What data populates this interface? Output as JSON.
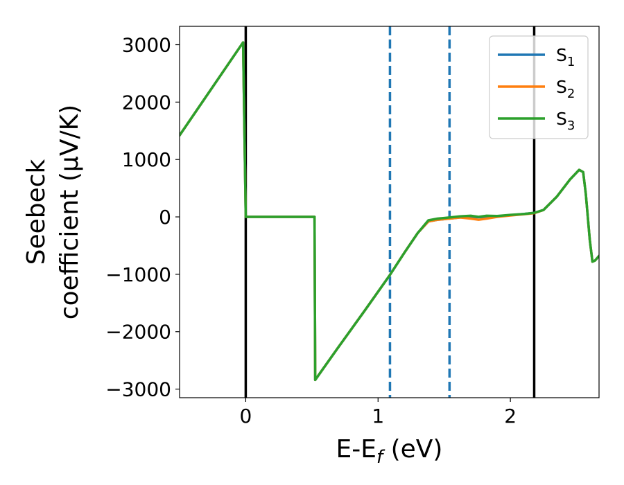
{
  "chart_data": {
    "type": "line",
    "title": "",
    "xlabel": "E-E",
    "xlabel_sub": "f",
    "xlabel_unit": " (eV)",
    "ylabel_line1": "Seebeck",
    "ylabel_line2": "coefficient  (μV/K)",
    "xlim": [
      -0.5,
      2.67
    ],
    "ylim": [
      -3150,
      3320
    ],
    "xticks": [
      0,
      1,
      2
    ],
    "xtick_labels": [
      "0",
      "1",
      "2"
    ],
    "yticks": [
      -3000,
      -2000,
      -1000,
      0,
      1000,
      2000,
      3000
    ],
    "ytick_labels": [
      "−3000",
      "−2000",
      "−1000",
      "0",
      "1000",
      "2000",
      "3000"
    ],
    "grid": false,
    "legend_position": "upper right",
    "vlines": [
      {
        "x": 0.0,
        "color": "#000000",
        "style": "solid"
      },
      {
        "x": 1.09,
        "color": "#1f77b4",
        "style": "dashed"
      },
      {
        "x": 1.54,
        "color": "#1f77b4",
        "style": "dashed"
      },
      {
        "x": 2.18,
        "color": "#000000",
        "style": "solid"
      }
    ],
    "series": [
      {
        "name": "S",
        "sub": "1",
        "color": "#1f77b4",
        "x": [
          -0.5,
          -0.02,
          0.0,
          0.52,
          0.525,
          0.7,
          0.9,
          1.09,
          1.2,
          1.3,
          1.38,
          1.45,
          1.54,
          1.62,
          1.7,
          1.76,
          1.82,
          1.9,
          2.0,
          2.1,
          2.18,
          2.25,
          2.35,
          2.45,
          2.52,
          2.55,
          2.57,
          2.6,
          2.62,
          2.64,
          2.67
        ],
        "y": [
          1420,
          3040,
          0,
          0,
          -2840,
          -2270,
          -1630,
          -1010,
          -620,
          -280,
          -80,
          -50,
          -30,
          -10,
          -5,
          -5,
          0,
          10,
          30,
          50,
          70,
          120,
          350,
          650,
          820,
          780,
          400,
          -400,
          -780,
          -760,
          -680
        ]
      },
      {
        "name": "S",
        "sub": "2",
        "color": "#ff7f0e",
        "x": [
          -0.5,
          -0.02,
          0.0,
          0.52,
          0.525,
          0.7,
          0.9,
          1.09,
          1.2,
          1.3,
          1.38,
          1.45,
          1.54,
          1.62,
          1.7,
          1.76,
          1.82,
          1.9,
          2.0,
          2.1,
          2.18,
          2.25,
          2.35,
          2.45,
          2.52,
          2.55,
          2.57,
          2.6,
          2.62,
          2.64,
          2.67
        ],
        "y": [
          1420,
          3040,
          0,
          0,
          -2840,
          -2270,
          -1630,
          -1010,
          -620,
          -280,
          -80,
          -50,
          -30,
          -10,
          -30,
          -50,
          -30,
          0,
          25,
          45,
          65,
          120,
          350,
          650,
          820,
          780,
          400,
          -400,
          -780,
          -760,
          -680
        ]
      },
      {
        "name": "S",
        "sub": "3",
        "color": "#2ca02c",
        "x": [
          -0.5,
          -0.02,
          0.0,
          0.52,
          0.525,
          0.7,
          0.9,
          1.09,
          1.2,
          1.3,
          1.38,
          1.45,
          1.54,
          1.62,
          1.7,
          1.76,
          1.82,
          1.9,
          2.0,
          2.1,
          2.18,
          2.25,
          2.35,
          2.45,
          2.52,
          2.55,
          2.57,
          2.6,
          2.62,
          2.64,
          2.67
        ],
        "y": [
          1420,
          3040,
          0,
          0,
          -2840,
          -2270,
          -1630,
          -1010,
          -620,
          -280,
          -60,
          -30,
          -10,
          10,
          20,
          0,
          20,
          15,
          35,
          50,
          70,
          120,
          350,
          650,
          820,
          780,
          400,
          -400,
          -780,
          -760,
          -680
        ]
      }
    ]
  }
}
